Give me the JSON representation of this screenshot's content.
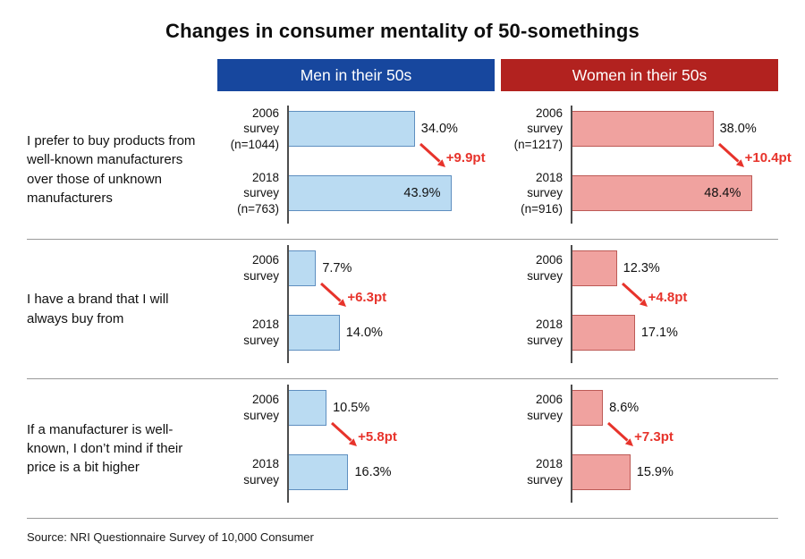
{
  "title": "Changes in consumer mentality of 50-somethings",
  "source": "Source: NRI Questionnaire Survey of 10,000 Consumer",
  "colors": {
    "men_header": "#17479e",
    "women_header": "#b2221f",
    "men_bar": "#badbf2",
    "men_bar_border": "#5f8fc0",
    "women_bar": "#f0a29f",
    "women_bar_border": "#bd5a56",
    "delta_red": "#e7332b"
  },
  "chart_data": {
    "type": "bar",
    "orientation": "horizontal",
    "title": "Changes in consumer mentality of 50-somethings",
    "value_unit": "%",
    "xlim": [
      0,
      50
    ],
    "grid": false,
    "legend": [
      "Men in their 50s",
      "Women in their 50s"
    ],
    "legend_position": "top",
    "rows": [
      {
        "question": "I prefer to buy products from well-known manufacturers over those of unknown manufacturers",
        "men": {
          "bars": [
            {
              "label": "2006 survey",
              "n": "(n=1044)",
              "value": 34.0,
              "display": "34.0%"
            },
            {
              "label": "2018 survey",
              "n": "(n=763)",
              "value": 43.9,
              "display": "43.9%"
            }
          ],
          "delta": "+9.9pt",
          "delta_pt": 9.9
        },
        "women": {
          "bars": [
            {
              "label": "2006 survey",
              "n": "(n=1217)",
              "value": 38.0,
              "display": "38.0%"
            },
            {
              "label": "2018 survey",
              "n": "(n=916)",
              "value": 48.4,
              "display": "48.4%"
            }
          ],
          "delta": "+10.4pt",
          "delta_pt": 10.4
        }
      },
      {
        "question": "I have a brand that I will always buy from",
        "men": {
          "bars": [
            {
              "label": "2006 survey",
              "value": 7.7,
              "display": "7.7%"
            },
            {
              "label": "2018 survey",
              "value": 14.0,
              "display": "14.0%"
            }
          ],
          "delta": "+6.3pt",
          "delta_pt": 6.3
        },
        "women": {
          "bars": [
            {
              "label": "2006 survey",
              "value": 12.3,
              "display": "12.3%"
            },
            {
              "label": "2018 survey",
              "value": 17.1,
              "display": "17.1%"
            }
          ],
          "delta": "+4.8pt",
          "delta_pt": 4.8
        }
      },
      {
        "question": "If a manufacturer is well-known, I don’t mind if their price is a bit higher",
        "men": {
          "bars": [
            {
              "label": "2006 survey",
              "value": 10.5,
              "display": "10.5%"
            },
            {
              "label": "2018 survey",
              "value": 16.3,
              "display": "16.3%"
            }
          ],
          "delta": "+5.8pt",
          "delta_pt": 5.8
        },
        "women": {
          "bars": [
            {
              "label": "2006 survey",
              "value": 8.6,
              "display": "8.6%"
            },
            {
              "label": "2018 survey",
              "value": 15.9,
              "display": "15.9%"
            }
          ],
          "delta": "+7.3pt",
          "delta_pt": 7.3
        }
      }
    ]
  }
}
